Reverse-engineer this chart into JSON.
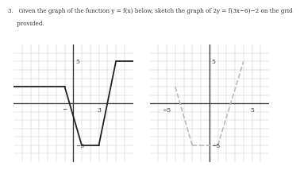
{
  "title_line1": "3.   Given the graph of the function y = f(x) below, sketch the graph of 2y = f(3x−6)−2 on the grid",
  "title_line2": "     provided.",
  "left_fx": {
    "segments": [
      {
        "x": [
          -7,
          -1
        ],
        "y": [
          2,
          2
        ]
      },
      {
        "x": [
          -1,
          1
        ],
        "y": [
          2,
          -5
        ]
      },
      {
        "x": [
          1,
          3
        ],
        "y": [
          -5,
          -5
        ]
      },
      {
        "x": [
          3,
          5
        ],
        "y": [
          -5,
          5
        ]
      },
      {
        "x": [
          5,
          7
        ],
        "y": [
          5,
          5
        ]
      }
    ],
    "color": "#222222",
    "linewidth": 1.3
  },
  "right_fx": {
    "segments": [
      {
        "x": [
          -4,
          -2
        ],
        "y": [
          2,
          -5
        ]
      },
      {
        "x": [
          -2,
          1
        ],
        "y": [
          -5,
          -5
        ]
      },
      {
        "x": [
          1,
          4
        ],
        "y": [
          -5,
          5
        ]
      }
    ],
    "color": "#bbbbbb",
    "linewidth": 1.2,
    "linestyle": "--"
  },
  "grid_color": "#cccccc",
  "axis_color": "#333333",
  "xlim": [
    -7,
    7
  ],
  "ylim": [
    -7,
    7
  ]
}
